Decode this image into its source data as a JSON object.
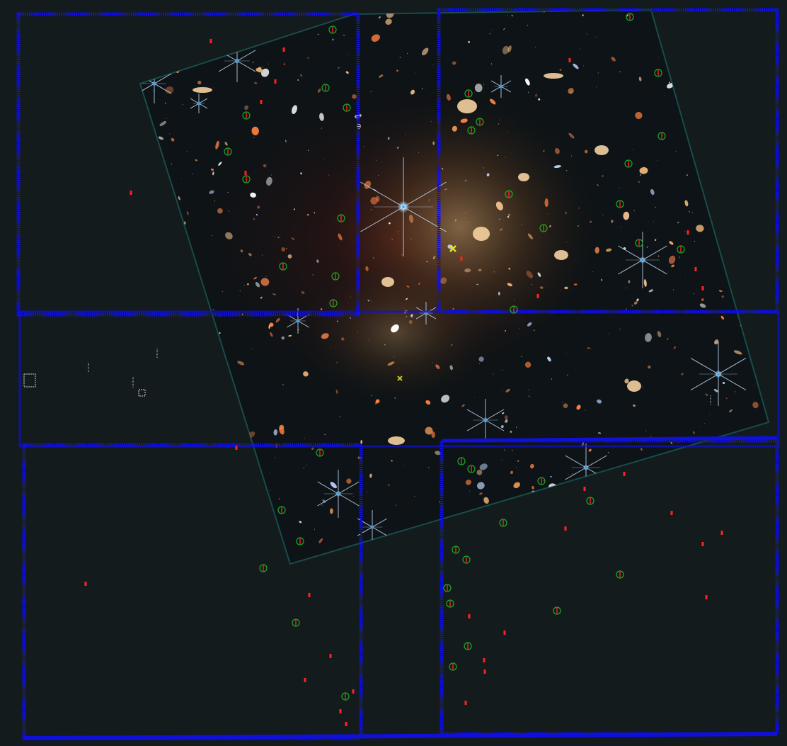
{
  "viewer": {
    "background_color": "#131b1d",
    "footprint_color": "#1010d8",
    "marker_color": "#ff2222",
    "circle_color": "#22aa22",
    "cross_color": "#e8e020",
    "mosaic_glow_color": "#2fd0c0"
  },
  "footprints": [
    {
      "name": "detector-footprint-top-left"
    },
    {
      "name": "detector-footprint-top-right"
    },
    {
      "name": "detector-footprint-middle"
    },
    {
      "name": "detector-footprint-bottom-left"
    },
    {
      "name": "detector-footprint-bottom-right"
    }
  ],
  "crosshairs": [
    {
      "name": "pointing-cross-primary"
    },
    {
      "name": "pointing-cross-secondary"
    }
  ]
}
